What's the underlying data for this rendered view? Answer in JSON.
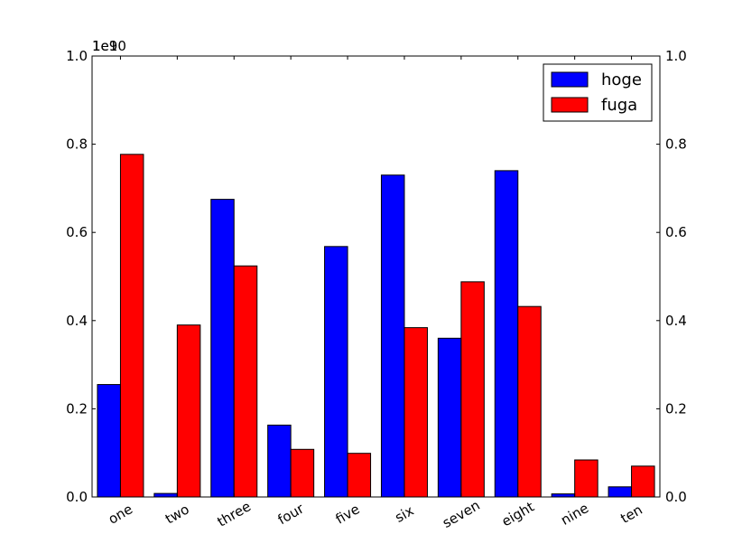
{
  "chart_data": {
    "type": "bar",
    "title": "",
    "xlabel": "",
    "ylabel": "",
    "categories": [
      "one",
      "two",
      "three",
      "four",
      "five",
      "six",
      "seven",
      "eight",
      "nine",
      "ten"
    ],
    "series": [
      {
        "name": "hoge",
        "color": "#0000ff",
        "values": [
          0.255,
          0.008,
          0.675,
          0.163,
          0.568,
          0.73,
          0.36,
          0.74,
          0.007,
          0.023
        ]
      },
      {
        "name": "fuga",
        "color": "#ff0000",
        "values": [
          0.777,
          0.39,
          0.524,
          0.108,
          0.099,
          0.384,
          0.488,
          0.432,
          0.084,
          0.07
        ]
      }
    ],
    "ylim": [
      0,
      1.0
    ],
    "yticks_left": [
      "0.0",
      "0.2",
      "0.4",
      "0.6",
      "0.8",
      "1.0"
    ],
    "yticks_right": [
      "0.0",
      "0.2",
      "0.4",
      "0.6",
      "0.8",
      "1.0"
    ],
    "offset_text_a": "1e10",
    "offset_text_b": "1e9",
    "legend_position": "upper right",
    "grid": false
  }
}
